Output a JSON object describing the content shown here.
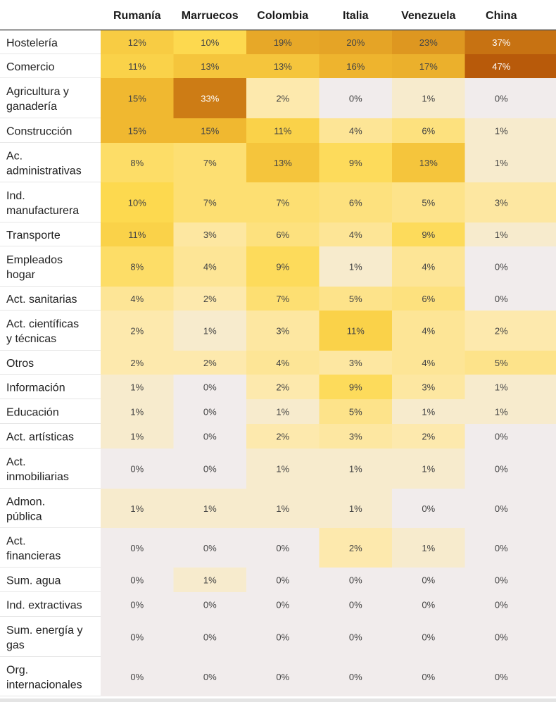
{
  "chart_data": {
    "type": "heatmap",
    "columns": [
      "Rumanía",
      "Marruecos",
      "Colombia",
      "Italia",
      "Venezuela",
      "China"
    ],
    "rows": [
      {
        "label": [
          "Hostelería"
        ],
        "values": [
          12,
          10,
          19,
          20,
          23,
          37
        ]
      },
      {
        "label": [
          "Comercio"
        ],
        "values": [
          11,
          13,
          13,
          16,
          17,
          47
        ]
      },
      {
        "label": [
          "Agricultura y",
          "ganadería"
        ],
        "values": [
          15,
          33,
          2,
          0,
          1,
          0
        ]
      },
      {
        "label": [
          "Construcción"
        ],
        "values": [
          15,
          15,
          11,
          4,
          6,
          1
        ]
      },
      {
        "label": [
          "Ac.",
          "administrativas"
        ],
        "values": [
          8,
          7,
          13,
          9,
          13,
          1
        ]
      },
      {
        "label": [
          "Ind.",
          "manufacturera"
        ],
        "values": [
          10,
          7,
          7,
          6,
          5,
          3
        ]
      },
      {
        "label": [
          "Transporte"
        ],
        "values": [
          11,
          3,
          6,
          4,
          9,
          1
        ]
      },
      {
        "label": [
          "Empleados",
          "hogar"
        ],
        "values": [
          8,
          4,
          9,
          1,
          4,
          0
        ]
      },
      {
        "label": [
          "Act. sanitarias"
        ],
        "values": [
          4,
          2,
          7,
          5,
          6,
          0
        ]
      },
      {
        "label": [
          "Act. científicas",
          "y técnicas"
        ],
        "values": [
          2,
          1,
          3,
          11,
          4,
          2
        ]
      },
      {
        "label": [
          "Otros"
        ],
        "values": [
          2,
          2,
          4,
          3,
          4,
          5
        ]
      },
      {
        "label": [
          "Información"
        ],
        "values": [
          1,
          0,
          2,
          9,
          3,
          1
        ]
      },
      {
        "label": [
          "Educación"
        ],
        "values": [
          1,
          0,
          1,
          5,
          1,
          1
        ]
      },
      {
        "label": [
          "Act. artísticas"
        ],
        "values": [
          1,
          0,
          2,
          3,
          2,
          0
        ]
      },
      {
        "label": [
          "Act.",
          "inmobiliarias"
        ],
        "values": [
          0,
          0,
          1,
          1,
          1,
          0
        ]
      },
      {
        "label": [
          "Admon.",
          "pública"
        ],
        "values": [
          1,
          1,
          1,
          1,
          0,
          0
        ]
      },
      {
        "label": [
          "Act.",
          "financieras"
        ],
        "values": [
          0,
          0,
          0,
          2,
          1,
          0
        ]
      },
      {
        "label": [
          "Sum. agua"
        ],
        "values": [
          0,
          1,
          0,
          0,
          0,
          0
        ]
      },
      {
        "label": [
          "Ind. extractivas"
        ],
        "values": [
          0,
          0,
          0,
          0,
          0,
          0
        ]
      },
      {
        "label": [
          "Sum. energía y",
          "gas"
        ],
        "values": [
          0,
          0,
          0,
          0,
          0,
          0
        ]
      },
      {
        "label": [
          "Org.",
          "internacionales"
        ],
        "values": [
          0,
          0,
          0,
          0,
          0,
          0
        ]
      }
    ],
    "value_suffix": "%",
    "color_scale": [
      "#f1ecec",
      "#fde9ad",
      "#fdd94f",
      "#f0b830",
      "#d98f1c",
      "#b85a0a"
    ]
  }
}
